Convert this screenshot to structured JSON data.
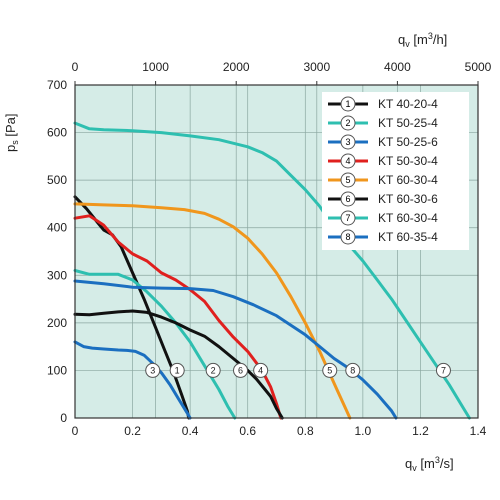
{
  "chart_data": {
    "type": "line",
    "background_color": "#d5ece7",
    "grid": true,
    "legend": "top-right",
    "x": {
      "label_main": "q",
      "label_sub": "v",
      "label_unit": "[m",
      "label_sup": "3",
      "label_unit_end": "/s]",
      "range": [
        0,
        1.4
      ],
      "ticks": [
        "0",
        "0.2",
        "0.4",
        "0.6",
        "0.8",
        "1.0",
        "1.2",
        "1.4"
      ]
    },
    "x_top": {
      "label_main": "q",
      "label_sub": "v",
      "label_unit": "[m",
      "label_sup": "3",
      "label_unit_end": "/h]",
      "range": [
        0,
        5000
      ],
      "ticks": [
        "0",
        "1000",
        "2000",
        "3000",
        "4000",
        "5000"
      ]
    },
    "y": {
      "label_main": "p",
      "label_sub": "s",
      "label_unit": "[Pa]",
      "range": [
        0,
        700
      ],
      "ticks": [
        "0",
        "100",
        "200",
        "300",
        "400",
        "500",
        "600",
        "700"
      ]
    },
    "series": [
      {
        "id": "1",
        "name": "KT 40-20-4",
        "color": "#111111",
        "points": [
          [
            0,
            465
          ],
          [
            0.04,
            440
          ],
          [
            0.08,
            410
          ],
          [
            0.1,
            395
          ],
          [
            0.13,
            385
          ],
          [
            0.16,
            360
          ],
          [
            0.2,
            305
          ],
          [
            0.24,
            250
          ],
          [
            0.28,
            190
          ],
          [
            0.31,
            145
          ],
          [
            0.34,
            100
          ],
          [
            0.37,
            50
          ],
          [
            0.39,
            15
          ],
          [
            0.395,
            0
          ]
        ],
        "marker": {
          "x": 0.355,
          "y": 100
        }
      },
      {
        "id": "2",
        "name": "KT 50-25-4",
        "color": "#2ebfb0",
        "points": [
          [
            0,
            310
          ],
          [
            0.05,
            302
          ],
          [
            0.1,
            302
          ],
          [
            0.15,
            302
          ],
          [
            0.2,
            290
          ],
          [
            0.25,
            265
          ],
          [
            0.3,
            235
          ],
          [
            0.35,
            200
          ],
          [
            0.4,
            160
          ],
          [
            0.45,
            110
          ],
          [
            0.5,
            60
          ],
          [
            0.53,
            25
          ],
          [
            0.555,
            0
          ]
        ],
        "marker": {
          "x": 0.48,
          "y": 100
        }
      },
      {
        "id": "3",
        "name": "KT 50-25-6",
        "color": "#1b6fc0",
        "points": [
          [
            0,
            160
          ],
          [
            0.03,
            150
          ],
          [
            0.06,
            147
          ],
          [
            0.1,
            145
          ],
          [
            0.15,
            143
          ],
          [
            0.18,
            142
          ],
          [
            0.21,
            140
          ],
          [
            0.24,
            132
          ],
          [
            0.27,
            115
          ],
          [
            0.3,
            95
          ],
          [
            0.33,
            70
          ],
          [
            0.36,
            40
          ],
          [
            0.39,
            10
          ],
          [
            0.4,
            0
          ]
        ],
        "marker": {
          "x": 0.27,
          "y": 100
        }
      },
      {
        "id": "4",
        "name": "KT 50-30-4",
        "color": "#e0201e",
        "points": [
          [
            0,
            420
          ],
          [
            0.05,
            425
          ],
          [
            0.1,
            405
          ],
          [
            0.15,
            370
          ],
          [
            0.2,
            345
          ],
          [
            0.25,
            330
          ],
          [
            0.3,
            305
          ],
          [
            0.35,
            290
          ],
          [
            0.4,
            270
          ],
          [
            0.45,
            245
          ],
          [
            0.5,
            205
          ],
          [
            0.55,
            170
          ],
          [
            0.6,
            140
          ],
          [
            0.65,
            100
          ],
          [
            0.68,
            65
          ],
          [
            0.7,
            30
          ],
          [
            0.715,
            0
          ]
        ],
        "marker": {
          "x": 0.645,
          "y": 100
        }
      },
      {
        "id": "5",
        "name": "KT 60-30-4",
        "color": "#f0961c",
        "points": [
          [
            0,
            450
          ],
          [
            0.1,
            448
          ],
          [
            0.2,
            446
          ],
          [
            0.3,
            442
          ],
          [
            0.38,
            438
          ],
          [
            0.45,
            430
          ],
          [
            0.5,
            418
          ],
          [
            0.55,
            402
          ],
          [
            0.6,
            378
          ],
          [
            0.65,
            345
          ],
          [
            0.7,
            305
          ],
          [
            0.75,
            255
          ],
          [
            0.8,
            200
          ],
          [
            0.85,
            140
          ],
          [
            0.88,
            100
          ],
          [
            0.91,
            60
          ],
          [
            0.94,
            20
          ],
          [
            0.955,
            0
          ]
        ],
        "marker": {
          "x": 0.885,
          "y": 100
        }
      },
      {
        "id": "6",
        "name": "KT 60-30-6",
        "color": "#111111",
        "points": [
          [
            0,
            218
          ],
          [
            0.05,
            217
          ],
          [
            0.1,
            220
          ],
          [
            0.15,
            223
          ],
          [
            0.2,
            225
          ],
          [
            0.25,
            222
          ],
          [
            0.3,
            212
          ],
          [
            0.35,
            200
          ],
          [
            0.4,
            185
          ],
          [
            0.45,
            172
          ],
          [
            0.5,
            150
          ],
          [
            0.55,
            125
          ],
          [
            0.6,
            100
          ],
          [
            0.63,
            82
          ],
          [
            0.66,
            60
          ],
          [
            0.68,
            45
          ],
          [
            0.7,
            20
          ],
          [
            0.72,
            0
          ]
        ],
        "marker": {
          "x": 0.575,
          "y": 100
        }
      },
      {
        "id": "7",
        "name": "KT 60-30-4",
        "color": "#2ebfb0",
        "points": [
          [
            0,
            620
          ],
          [
            0.05,
            608
          ],
          [
            0.1,
            606
          ],
          [
            0.2,
            604
          ],
          [
            0.3,
            600
          ],
          [
            0.4,
            593
          ],
          [
            0.5,
            585
          ],
          [
            0.6,
            570
          ],
          [
            0.65,
            558
          ],
          [
            0.7,
            540
          ],
          [
            0.75,
            510
          ],
          [
            0.8,
            480
          ],
          [
            0.85,
            445
          ],
          [
            0.9,
            400
          ],
          [
            0.95,
            365
          ],
          [
            1.0,
            330
          ],
          [
            1.05,
            290
          ],
          [
            1.1,
            250
          ],
          [
            1.15,
            205
          ],
          [
            1.2,
            160
          ],
          [
            1.25,
            115
          ],
          [
            1.3,
            70
          ],
          [
            1.35,
            20
          ],
          [
            1.37,
            0
          ]
        ],
        "marker": {
          "x": 1.28,
          "y": 100
        }
      },
      {
        "id": "8",
        "name": "KT 60-35-4",
        "color": "#1b6fc0",
        "points": [
          [
            0,
            288
          ],
          [
            0.1,
            282
          ],
          [
            0.2,
            275
          ],
          [
            0.3,
            273
          ],
          [
            0.4,
            272
          ],
          [
            0.48,
            268
          ],
          [
            0.55,
            255
          ],
          [
            0.62,
            238
          ],
          [
            0.7,
            215
          ],
          [
            0.75,
            195
          ],
          [
            0.8,
            175
          ],
          [
            0.85,
            150
          ],
          [
            0.9,
            125
          ],
          [
            0.95,
            105
          ],
          [
            1.0,
            80
          ],
          [
            1.05,
            50
          ],
          [
            1.1,
            15
          ],
          [
            1.115,
            0
          ]
        ],
        "marker": {
          "x": 0.965,
          "y": 100
        }
      }
    ]
  }
}
